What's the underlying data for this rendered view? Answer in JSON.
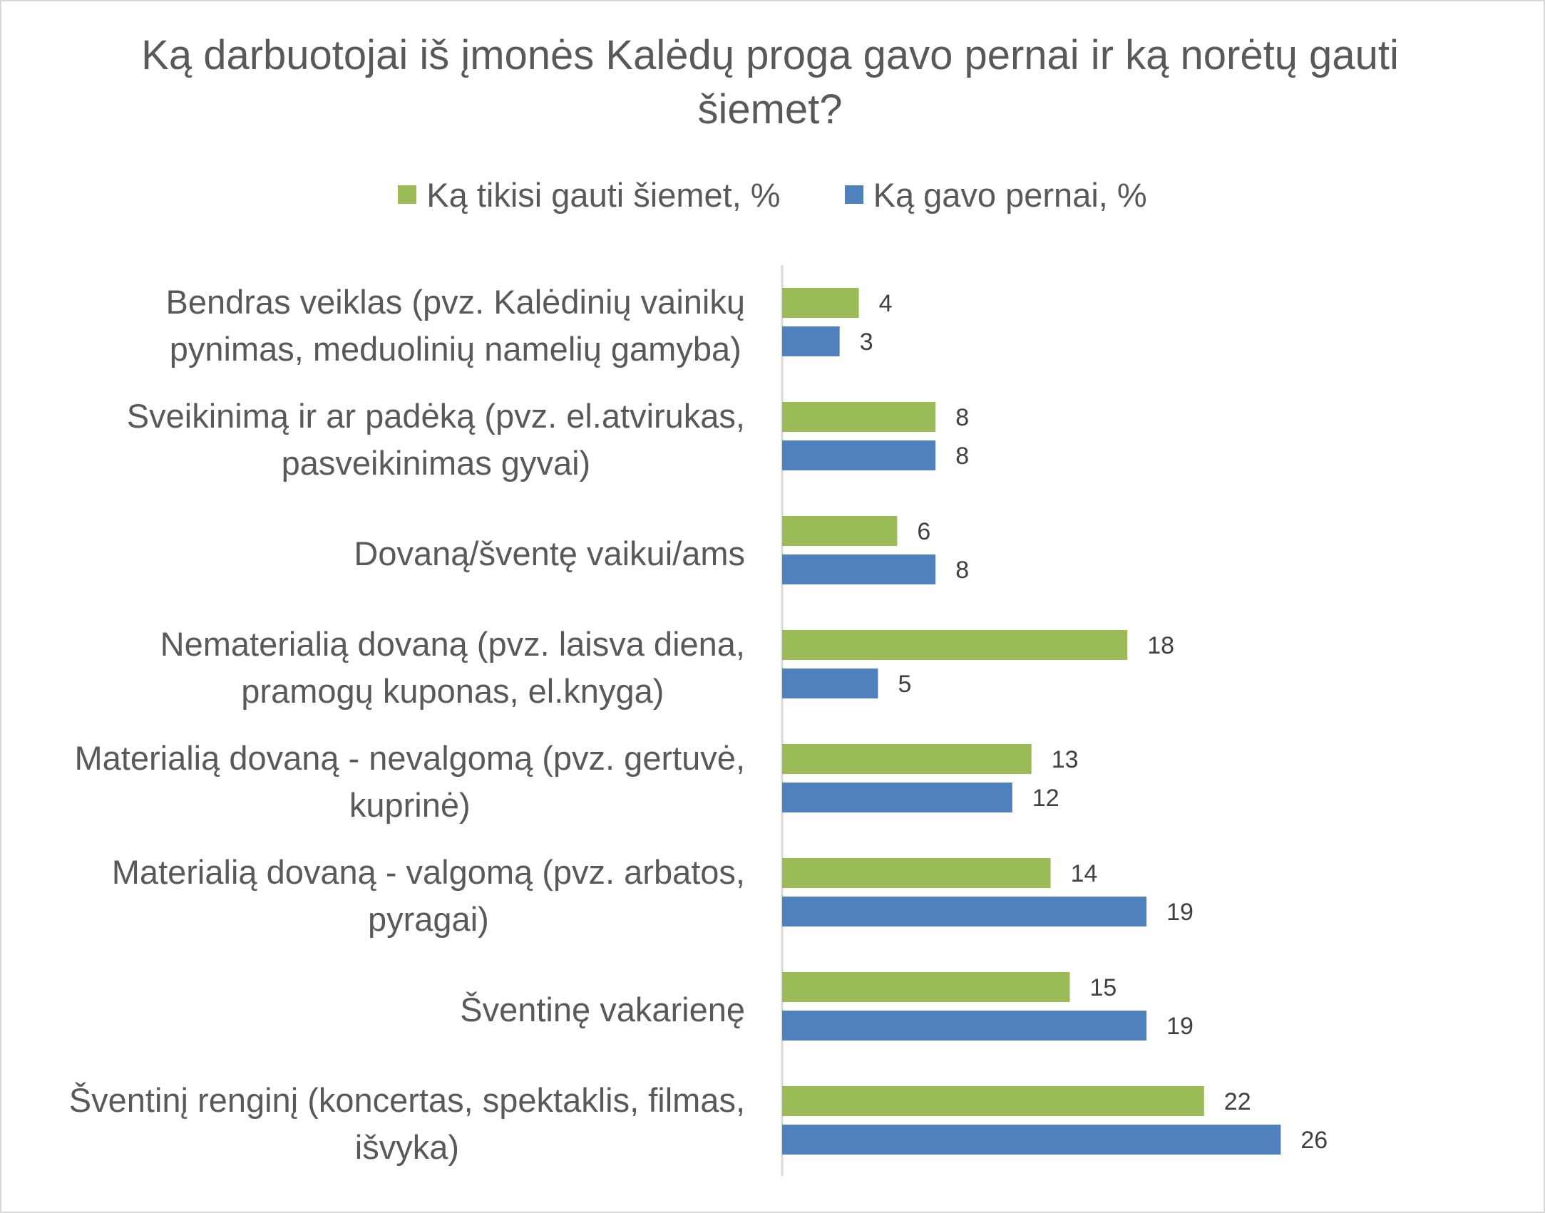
{
  "chart_data": {
    "type": "bar",
    "orientation": "horizontal",
    "title": "Ką darbuotojai iš įmonės Kalėdų proga gavo pernai ir ką norėtų gauti šiemet?",
    "categories": [
      [
        "Bendras veiklas (pvz. Kalėdinių vainikų",
        "pynimas, meduolinių namelių gamyba)"
      ],
      [
        "Sveikinimą ir ar padėką (pvz. el.atvirukas,",
        "pasveikinimas gyvai)"
      ],
      [
        "Dovaną/šventę vaikui/ams"
      ],
      [
        "Nematerialią dovaną (pvz. laisva diena,",
        "pramogų kuponas, el.knyga)"
      ],
      [
        "Materialią dovaną - nevalgomą (pvz. gertuvė,",
        "kuprinė)"
      ],
      [
        "Materialią dovaną - valgomą (pvz. arbatos,",
        "pyragai)"
      ],
      [
        "Šventinę vakarienę"
      ],
      [
        "Šventinį renginį (koncertas, spektaklis, filmas,",
        "išvyka)"
      ]
    ],
    "series": [
      {
        "name": "Ką tikisi gauti šiemet, %",
        "color": "#9bbb59",
        "values": [
          4,
          8,
          6,
          18,
          13,
          14,
          15,
          22
        ]
      },
      {
        "name": "Ką gavo pernai, %",
        "color": "#4f81bd",
        "values": [
          3,
          8,
          8,
          5,
          12,
          19,
          19,
          26
        ]
      }
    ],
    "xlim": [
      0,
      30
    ],
    "grid": false,
    "legend_position": "top"
  }
}
